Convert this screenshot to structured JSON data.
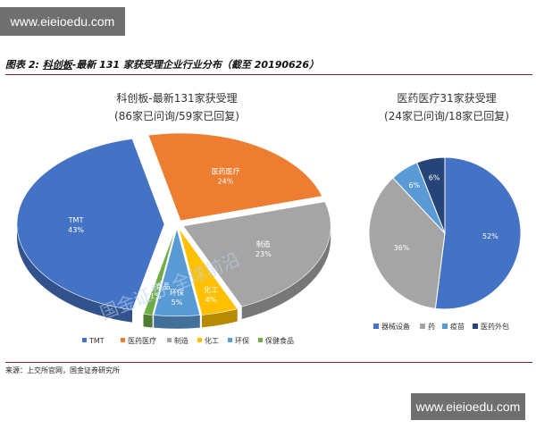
{
  "watermark": {
    "top": "www.eieioedu.com",
    "bottom": "www.eieioedu.com",
    "overlay": "国金证券 全球前沿"
  },
  "figure": {
    "label": "图表 2:",
    "title_underlined": "科创板",
    "title_rest": "-最新 131 家获受理企业行业分布（截至 20190626）"
  },
  "source": "来源：上交所官网，国金证券研究所",
  "colors": {
    "blue": "#4472c4",
    "orange": "#ed7d31",
    "gray": "#a5a5a5",
    "yellow": "#ffc000",
    "lightblue": "#5b9bd5",
    "green": "#70ad47",
    "navy": "#264478"
  },
  "chart_data": [
    {
      "type": "pie",
      "title": "科创板-最新131家获受理",
      "subtitle": "(86家已问询/59家已回复)",
      "legend_position": "bottom",
      "slices": [
        {
          "name": "TMT",
          "value": 43,
          "label": "43%",
          "color": "#4472c4"
        },
        {
          "name": "医药医疗",
          "value": 24,
          "label": "24%",
          "color": "#ed7d31"
        },
        {
          "name": "制造",
          "value": 23,
          "label": "23%",
          "color": "#a5a5a5"
        },
        {
          "name": "化工",
          "value": 4,
          "label": "4%",
          "color": "#ffc000"
        },
        {
          "name": "环保",
          "value": 5,
          "label": "5%",
          "color": "#5b9bd5"
        },
        {
          "name": "保健食品",
          "value": 1,
          "label": "1%",
          "color": "#70ad47"
        }
      ]
    },
    {
      "type": "pie",
      "title": "医药医疗31家获受理",
      "subtitle": "(24家已问询/18家已回复)",
      "legend_position": "bottom",
      "slices": [
        {
          "name": "器械设备",
          "value": 52,
          "label": "52%",
          "color": "#4472c4"
        },
        {
          "name": "药",
          "value": 36,
          "label": "36%",
          "color": "#a5a5a5"
        },
        {
          "name": "疫苗",
          "value": 6,
          "label": "6%",
          "color": "#5b9bd5"
        },
        {
          "name": "医药外包",
          "value": 6,
          "label": "6%",
          "color": "#264478"
        }
      ]
    }
  ]
}
